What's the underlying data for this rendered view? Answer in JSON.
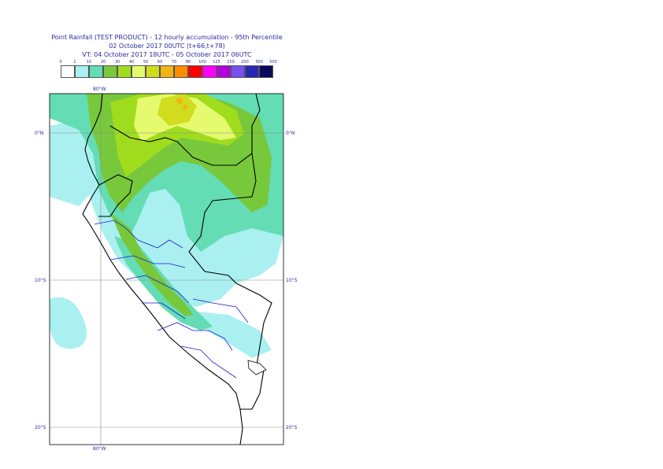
{
  "title": {
    "line1": "Point Rainfall (TEST PRODUCT) - 12 hourly accumulation - 95th Percentile",
    "line2": "02 October 2017 00UTC (t+66,t+78)",
    "line3": "VT: 04 October 2017 18UTC - 05 October 2017 06UTC"
  },
  "legend": {
    "thresholds": [
      "0",
      "1",
      "10",
      "20",
      "30",
      "40",
      "50",
      "60",
      "70",
      "80",
      "100",
      "125",
      "150",
      "200",
      "300",
      "500"
    ],
    "colors": [
      "#ffffff",
      "#aaf0f0",
      "#64dcb4",
      "#78c83c",
      "#a0dc1e",
      "#e6fa6e",
      "#d2dc1e",
      "#f0b414",
      "#ff8c00",
      "#ff0000",
      "#ff00ff",
      "#b400dc",
      "#7850f0",
      "#2828b4",
      "#0a0a5a"
    ]
  },
  "axes": {
    "top_lon": "80°W",
    "bottom_lon": "80°W",
    "lat_left": [
      "0°N",
      "10°S",
      "20°S"
    ],
    "lat_right": [
      "0°N",
      "10°S",
      "20°S"
    ]
  }
}
